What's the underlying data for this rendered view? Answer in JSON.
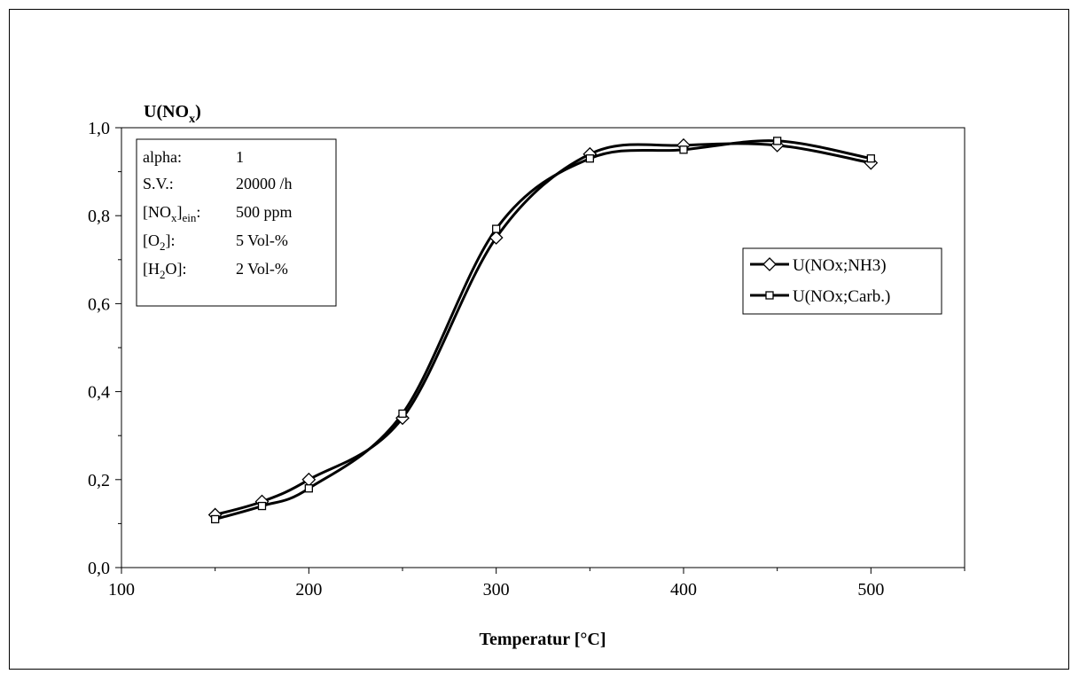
{
  "chart_data": {
    "type": "line",
    "title": "",
    "ylabel": {
      "main": "U(NO",
      "sub": "x",
      "close": ")"
    },
    "xlabel": "Temperatur [°C]",
    "x_ticks": [
      "100",
      "200",
      "300",
      "400",
      "500"
    ],
    "y_ticks": [
      "0,0",
      "0,2",
      "0,4",
      "0,6",
      "0,8",
      "1,0"
    ],
    "xlim": [
      100,
      550
    ],
    "ylim": [
      0,
      1
    ],
    "x": [
      150,
      175,
      200,
      250,
      300,
      350,
      400,
      450,
      500
    ],
    "series": [
      {
        "name": "U(NOx;NH3)",
        "marker": "diamond",
        "values": [
          0.12,
          0.15,
          0.2,
          0.34,
          0.75,
          0.94,
          0.96,
          0.96,
          0.92
        ]
      },
      {
        "name": "U(NOx;Carb.)",
        "marker": "square",
        "values": [
          0.11,
          0.14,
          0.18,
          0.35,
          0.77,
          0.93,
          0.95,
          0.97,
          0.93
        ]
      }
    ],
    "legend_position": "right",
    "grid": false,
    "line_color": "#000000"
  },
  "info_box": {
    "alpha_label": "alpha:",
    "alpha_value": "1",
    "sv_label": "S.V.:",
    "sv_value": "20000 /h",
    "nox_label_main": "[NO",
    "nox_label_sub1": "x",
    "nox_label_mid": "]",
    "nox_label_sub2": "ein",
    "nox_label_end": ":",
    "nox_value": "500 ppm",
    "o2_label_main": "[O",
    "o2_label_sub": "2",
    "o2_label_end": "]:",
    "o2_value": "5 Vol-%",
    "h2o_label_main": "[H",
    "h2o_label_sub": "2",
    "h2o_label_end": "O]:",
    "h2o_value": "2 Vol-%"
  }
}
